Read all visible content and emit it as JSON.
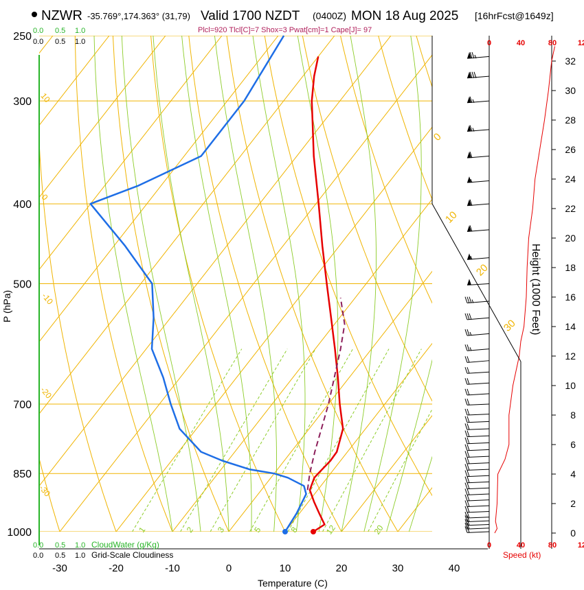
{
  "header": {
    "station": "NZWR",
    "coords": "-35.769°,174.363° (31,79)",
    "valid": "Valid 1700 NZDT",
    "zulu": "(0400Z)",
    "date": "MON 18 Aug 2025",
    "forecast": "[16hrFcst@1649z]",
    "params": "Plcl=920 Tlcl[C]=7 Shox=3 Pwat[cm]=1 Cape[J]= 97"
  },
  "colors": {
    "isotherm": "#f0b400",
    "dry_adiabat": "#f0b400",
    "moist_adiabat": "#8ccc28",
    "mixing_ratio": "#8ccc28",
    "temperature": "#e60000",
    "dewpoint": "#1e6ee6",
    "parcel": "#8c1e5a",
    "wind": "#000000",
    "speed": "#e60000",
    "cloud": "#28b428"
  },
  "chart_data": {
    "type": "skew-t",
    "title": "NZWR sounding",
    "xlabel": "Temperature (C)",
    "ylabel": "P (hPa)",
    "y2label": "Height (1000 Feet)",
    "x_ticks": [
      -30,
      -20,
      -10,
      0,
      10,
      20,
      30,
      40
    ],
    "p_ticks": [
      250,
      300,
      400,
      500,
      700,
      850,
      1000
    ],
    "height_ticks": [
      0,
      2,
      4,
      6,
      8,
      10,
      12,
      14,
      16,
      18,
      20,
      22,
      24,
      26,
      28,
      30,
      32
    ],
    "theta_labels": [
      {
        "value": "0",
        "p": 340
      },
      {
        "value": "10",
        "p": 418
      },
      {
        "value": "20",
        "p": 487
      },
      {
        "value": "30",
        "p": 578
      }
    ],
    "iso_left_labels": [
      {
        "value": "10",
        "p": 300
      },
      {
        "value": "0",
        "p": 395
      },
      {
        "value": "-10",
        "p": 520
      },
      {
        "value": "-20",
        "p": 680
      },
      {
        "value": "-30",
        "p": 880
      }
    ],
    "mixing_ratio_labels": [
      {
        "value": "1",
        "t": -16
      },
      {
        "value": "2",
        "t": -7.5
      },
      {
        "value": "3",
        "t": -2
      },
      {
        "value": "5",
        "t": 4.5
      },
      {
        "value": "8",
        "t": 11
      },
      {
        "value": "12",
        "t": 17.5
      },
      {
        "value": "20",
        "t": 26
      }
    ],
    "temperature": {
      "name": "Temperature",
      "points": [
        [
          1000,
          15
        ],
        [
          980,
          16
        ],
        [
          950,
          13.5
        ],
        [
          920,
          11
        ],
        [
          890,
          8.6
        ],
        [
          860,
          7.7
        ],
        [
          850,
          7.8
        ],
        [
          820,
          8.2
        ],
        [
          800,
          8.1
        ],
        [
          750,
          6
        ],
        [
          700,
          2
        ],
        [
          650,
          -2
        ],
        [
          600,
          -6.5
        ],
        [
          550,
          -11.5
        ],
        [
          500,
          -17
        ],
        [
          450,
          -23
        ],
        [
          400,
          -29.5
        ],
        [
          350,
          -37
        ],
        [
          300,
          -45
        ],
        [
          280,
          -48
        ],
        [
          265,
          -50
        ]
      ]
    },
    "dewpoint": {
      "name": "Dewpoint",
      "points": [
        [
          1000,
          10
        ],
        [
          950,
          9.5
        ],
        [
          900,
          8.5
        ],
        [
          880,
          7
        ],
        [
          860,
          3
        ],
        [
          850,
          0
        ],
        [
          840,
          -5
        ],
        [
          820,
          -11
        ],
        [
          800,
          -16
        ],
        [
          750,
          -23
        ],
        [
          700,
          -28
        ],
        [
          650,
          -33
        ],
        [
          600,
          -39
        ],
        [
          550,
          -43
        ],
        [
          500,
          -48
        ],
        [
          450,
          -58
        ],
        [
          400,
          -70
        ],
        [
          380,
          -64
        ],
        [
          350,
          -57
        ],
        [
          300,
          -57
        ],
        [
          250,
          -59
        ]
      ]
    },
    "parcel": {
      "name": "Parcel",
      "points": [
        [
          890,
          8.2
        ],
        [
          850,
          6.3
        ],
        [
          800,
          4.2
        ],
        [
          700,
          0
        ],
        [
          600,
          -5.5
        ],
        [
          560,
          -8.2
        ],
        [
          520,
          -12.6
        ]
      ]
    },
    "surface_markers": {
      "temperature": {
        "p": 1000,
        "t": 15
      },
      "dewpoint": {
        "p": 1000,
        "t": 10
      }
    },
    "winds": [
      {
        "p": 1000,
        "dir": 80,
        "spd": 20
      },
      {
        "p": 990,
        "dir": 80,
        "spd": 20
      },
      {
        "p": 980,
        "dir": 80,
        "spd": 20
      },
      {
        "p": 970,
        "dir": 80,
        "spd": 20
      },
      {
        "p": 960,
        "dir": 80,
        "spd": 20
      },
      {
        "p": 945,
        "dir": 80,
        "spd": 20
      },
      {
        "p": 930,
        "dir": 80,
        "spd": 20
      },
      {
        "p": 915,
        "dir": 80,
        "spd": 20
      },
      {
        "p": 900,
        "dir": 80,
        "spd": 20
      },
      {
        "p": 885,
        "dir": 80,
        "spd": 20
      },
      {
        "p": 870,
        "dir": 80,
        "spd": 20
      },
      {
        "p": 855,
        "dir": 80,
        "spd": 20
      },
      {
        "p": 840,
        "dir": 80,
        "spd": 20
      },
      {
        "p": 825,
        "dir": 80,
        "spd": 20
      },
      {
        "p": 810,
        "dir": 80,
        "spd": 20
      },
      {
        "p": 795,
        "dir": 80,
        "spd": 20
      },
      {
        "p": 780,
        "dir": 80,
        "spd": 20
      },
      {
        "p": 765,
        "dir": 80,
        "spd": 20
      },
      {
        "p": 750,
        "dir": 80,
        "spd": 20
      },
      {
        "p": 735,
        "dir": 80,
        "spd": 20
      },
      {
        "p": 720,
        "dir": 80,
        "spd": 20
      },
      {
        "p": 700,
        "dir": 80,
        "spd": 20
      },
      {
        "p": 680,
        "dir": 75,
        "spd": 20
      },
      {
        "p": 660,
        "dir": 75,
        "spd": 20
      },
      {
        "p": 640,
        "dir": 75,
        "spd": 20
      },
      {
        "p": 620,
        "dir": 70,
        "spd": 20
      },
      {
        "p": 600,
        "dir": 70,
        "spd": 25
      },
      {
        "p": 575,
        "dir": 70,
        "spd": 25
      },
      {
        "p": 550,
        "dir": 70,
        "spd": 30
      },
      {
        "p": 525,
        "dir": 70,
        "spd": 35
      },
      {
        "p": 500,
        "dir": 75,
        "spd": 50
      },
      {
        "p": 465,
        "dir": 70,
        "spd": 55
      },
      {
        "p": 430,
        "dir": 70,
        "spd": 60
      },
      {
        "p": 400,
        "dir": 70,
        "spd": 60
      },
      {
        "p": 375,
        "dir": 70,
        "spd": 55
      },
      {
        "p": 350,
        "dir": 70,
        "spd": 60
      },
      {
        "p": 325,
        "dir": 70,
        "spd": 65
      },
      {
        "p": 300,
        "dir": 70,
        "spd": 65
      },
      {
        "p": 280,
        "dir": 70,
        "spd": 80
      },
      {
        "p": 265,
        "dir": 70,
        "spd": 75
      }
    ],
    "speed_profile": {
      "name": "Speed (kt)",
      "ticks": [
        0,
        40,
        80,
        120
      ],
      "points": [
        [
          0,
          7
        ],
        [
          0.3,
          10
        ],
        [
          0.8,
          8
        ],
        [
          2,
          10
        ],
        [
          4,
          11
        ],
        [
          5,
          20
        ],
        [
          6,
          25
        ],
        [
          8,
          25
        ],
        [
          10,
          30
        ],
        [
          12,
          38
        ],
        [
          13,
          40
        ],
        [
          14,
          44
        ],
        [
          16,
          47
        ],
        [
          18,
          48
        ],
        [
          20,
          50
        ],
        [
          22,
          55
        ],
        [
          24,
          58
        ],
        [
          26,
          64
        ],
        [
          28,
          70
        ],
        [
          30,
          75
        ],
        [
          32,
          79
        ],
        [
          33,
          83
        ]
      ]
    },
    "tropopause_line": {
      "name": "Tropopause",
      "points": [
        [
          0,
          13
        ],
        [
          0,
          23.8
        ]
      ]
    },
    "bottom_legend": {
      "cloud_ticks": [
        "0.0",
        "0.5",
        "1.0"
      ],
      "cloud_label": "CloudWater (g/Kg)",
      "cover_ticks": [
        "0.0",
        "0.5",
        "1.0"
      ],
      "cover_label": "Grid-Scale Cloudiness"
    },
    "top_legend": {
      "cloud_ticks": [
        "0.0",
        "0.5",
        "1.0"
      ],
      "cover_ticks": [
        "0.0",
        "0.5",
        "1.0"
      ]
    },
    "speed_axis_label": "Speed (kt)"
  }
}
